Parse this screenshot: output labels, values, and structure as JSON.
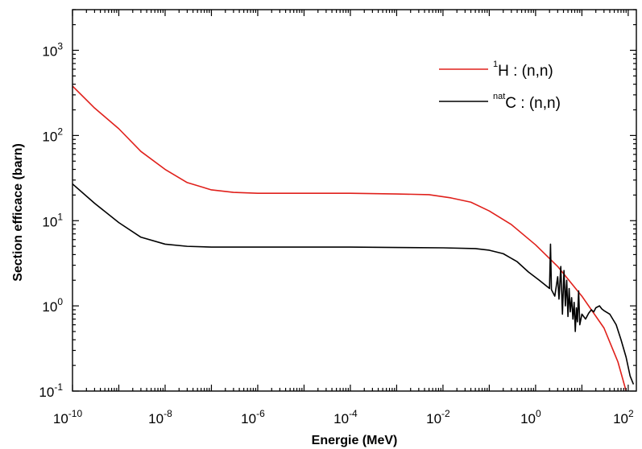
{
  "chart_data": {
    "type": "line",
    "title": "",
    "xlabel": "Energie (MeV)",
    "ylabel": "Section efficace (barn)",
    "xscale": "log",
    "yscale": "log",
    "xlim": [
      1e-10,
      150
    ],
    "ylim": [
      0.1,
      3000
    ],
    "grid": false,
    "legend_position": "top-right",
    "x_ticks": [
      {
        "value": 1e-10,
        "base": "10",
        "exp": "-10"
      },
      {
        "value": 1e-08,
        "base": "10",
        "exp": "-8"
      },
      {
        "value": 1e-06,
        "base": "10",
        "exp": "-6"
      },
      {
        "value": 0.0001,
        "base": "10",
        "exp": "-4"
      },
      {
        "value": 0.01,
        "base": "10",
        "exp": "-2"
      },
      {
        "value": 1,
        "base": "10",
        "exp": "0"
      },
      {
        "value": 100,
        "base": "10",
        "exp": "2"
      }
    ],
    "y_ticks": [
      {
        "value": 0.1,
        "base": "10",
        "exp": "-1"
      },
      {
        "value": 1,
        "base": "10",
        "exp": "0"
      },
      {
        "value": 10,
        "base": "10",
        "exp": "1"
      },
      {
        "value": 100,
        "base": "10",
        "exp": "2"
      },
      {
        "value": 1000,
        "base": "10",
        "exp": "3"
      }
    ],
    "series": [
      {
        "name_sup": "1",
        "name_main": "H : (n,n)",
        "color": "#e0201b",
        "points": [
          [
            1e-10,
            380
          ],
          [
            3e-10,
            210
          ],
          [
            1e-09,
            120
          ],
          [
            3e-09,
            65
          ],
          [
            1e-08,
            40
          ],
          [
            3e-08,
            28
          ],
          [
            1e-07,
            23
          ],
          [
            3e-07,
            21.5
          ],
          [
            1e-06,
            21
          ],
          [
            1e-05,
            21
          ],
          [
            0.0001,
            21
          ],
          [
            0.001,
            20.6
          ],
          [
            0.005,
            20.2
          ],
          [
            0.015,
            18.5
          ],
          [
            0.04,
            16.5
          ],
          [
            0.1,
            13
          ],
          [
            0.3,
            9
          ],
          [
            1,
            5.2
          ],
          [
            3,
            2.9
          ],
          [
            10,
            1.3
          ],
          [
            30,
            0.55
          ],
          [
            60,
            0.22
          ],
          [
            90,
            0.1
          ]
        ]
      },
      {
        "name_sup": "nat",
        "name_main": "C : (n,n)",
        "color": "#000000",
        "points": [
          [
            1e-10,
            27
          ],
          [
            3e-10,
            16
          ],
          [
            1e-09,
            9.5
          ],
          [
            3e-09,
            6.4
          ],
          [
            1e-08,
            5.3
          ],
          [
            3e-08,
            5.0
          ],
          [
            1e-07,
            4.9
          ],
          [
            1e-06,
            4.9
          ],
          [
            1e-05,
            4.9
          ],
          [
            0.0001,
            4.9
          ],
          [
            0.001,
            4.85
          ],
          [
            0.01,
            4.8
          ],
          [
            0.05,
            4.7
          ],
          [
            0.1,
            4.5
          ],
          [
            0.2,
            4.1
          ],
          [
            0.4,
            3.3
          ],
          [
            0.7,
            2.5
          ],
          [
            1.2,
            2.0
          ],
          [
            2.0,
            1.6
          ],
          [
            2.1,
            5.3
          ],
          [
            2.2,
            1.55
          ],
          [
            2.6,
            1.3
          ],
          [
            3.0,
            2.2
          ],
          [
            3.2,
            1.2
          ],
          [
            3.5,
            2.9
          ],
          [
            3.8,
            0.8
          ],
          [
            4.1,
            2.6
          ],
          [
            4.4,
            1.0
          ],
          [
            4.7,
            2.0
          ],
          [
            5.0,
            0.75
          ],
          [
            5.3,
            1.6
          ],
          [
            5.6,
            0.85
          ],
          [
            6.0,
            1.25
          ],
          [
            6.4,
            0.7
          ],
          [
            6.8,
            1.1
          ],
          [
            7.2,
            0.5
          ],
          [
            7.6,
            0.95
          ],
          [
            8.0,
            0.65
          ],
          [
            8.5,
            1.5
          ],
          [
            9.0,
            0.6
          ],
          [
            10,
            0.8
          ],
          [
            12,
            0.7
          ],
          [
            14,
            0.82
          ],
          [
            16,
            0.9
          ],
          [
            18,
            0.85
          ],
          [
            20,
            0.95
          ],
          [
            24,
            1.0
          ],
          [
            27,
            0.92
          ],
          [
            30,
            0.88
          ],
          [
            40,
            0.8
          ],
          [
            55,
            0.6
          ],
          [
            70,
            0.4
          ],
          [
            90,
            0.25
          ],
          [
            110,
            0.15
          ],
          [
            130,
            0.12
          ]
        ]
      }
    ]
  }
}
